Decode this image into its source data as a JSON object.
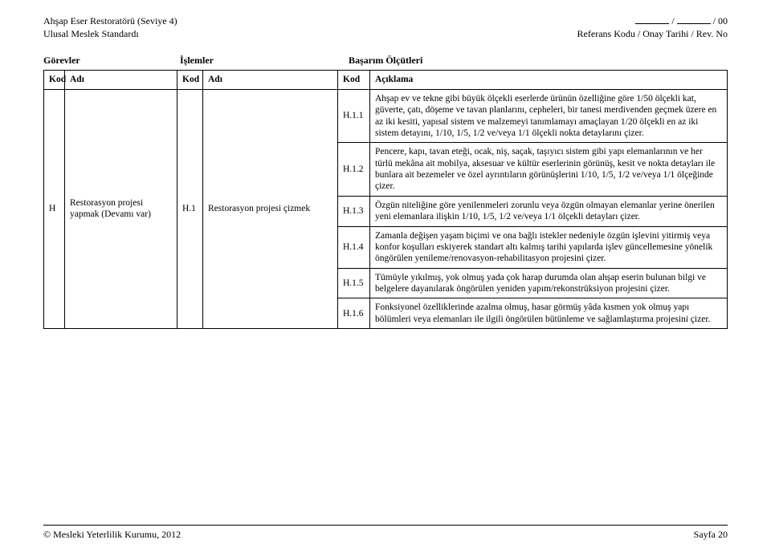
{
  "header": {
    "left_line1": "Ahşap Eser Restoratörü (Seviye 4)",
    "left_line2": "Ulusal Meslek Standardı",
    "right_line1_suffix": " / 00",
    "right_line2": "Referans Kodu / Onay Tarihi / Rev. No"
  },
  "top_labels": {
    "gorevler": "Görevler",
    "islemler": "İşlemler",
    "basarim": "Başarım Ölçütleri"
  },
  "thead": {
    "kod": "Kod",
    "adi": "Adı",
    "aciklama": "Açıklama"
  },
  "body": {
    "lvl1_kod": "H",
    "lvl1_adi": "Restorasyon projesi yapmak (Devamı var)",
    "lvl2_kod": "H.1",
    "lvl2_adi": "Restorasyon projesi çizmek",
    "rows": [
      {
        "kod": "H.1.1",
        "text": "Ahşap ev ve tekne gibi büyük ölçekli eserlerde ürünün özelliğine göre 1/50 ölçekli kat, güverte, çatı, döşeme ve tavan planlarını, cepheleri, bir tanesi merdivenden geçmek üzere en az iki kesiti, yapısal sistem ve malzemeyi tanımlamayı amaçlayan 1/20 ölçekli en az iki sistem detayını, 1/10, 1/5, 1/2 ve/veya 1/1 ölçekli nokta detaylarını çizer."
      },
      {
        "kod": "H.1.2",
        "text": "Pencere, kapı, tavan eteği, ocak, niş, saçak, taşıyıcı sistem gibi yapı elemanlarının ve her türlü mekâna ait mobilya, aksesuar ve kültür eserlerinin görünüş, kesit ve nokta detayları ile bunlara ait bezemeler ve özel ayrıntıların görünüşlerini 1/10, 1/5, 1/2 ve/veya 1/1 ölçeğinde çizer."
      },
      {
        "kod": "H.1.3",
        "text": "Özgün niteliğine göre yenilenmeleri zorunlu veya özgün olmayan elemanlar yerine önerilen yeni elemanlara ilişkin 1/10, 1/5, 1/2 ve/veya 1/1 ölçekli detayları çizer."
      },
      {
        "kod": "H.1.4",
        "text": "Zamanla değişen yaşam biçimi ve ona bağlı istekler nedeniyle özgün işlevini yitirmiş veya konfor koşulları eskiyerek standart altı kalmış tarihi yapılarda işlev güncellemesine yönelik öngörülen yenileme/renovasyon-rehabilitasyon projesini çizer."
      },
      {
        "kod": "H.1.5",
        "text": "Tümüyle yıkılmış, yok olmuş yada çok harap durumda olan ahşap eserin bulunan bilgi ve belgelere dayanılarak öngörülen yeniden yapım/rekonstrüksiyon projesini çizer."
      },
      {
        "kod": "H.1.6",
        "text": "Fonksiyonel özelliklerinde azalma olmuş, hasar görmüş yâda kısmen yok olmuş yapı bölümleri veya elemanları ile ilgili öngörülen bütünleme ve sağlamlaştırma projesini çizer."
      }
    ]
  },
  "footer": {
    "left": "© Mesleki Yeterlilik Kurumu, 2012",
    "right": "Sayfa 20"
  }
}
